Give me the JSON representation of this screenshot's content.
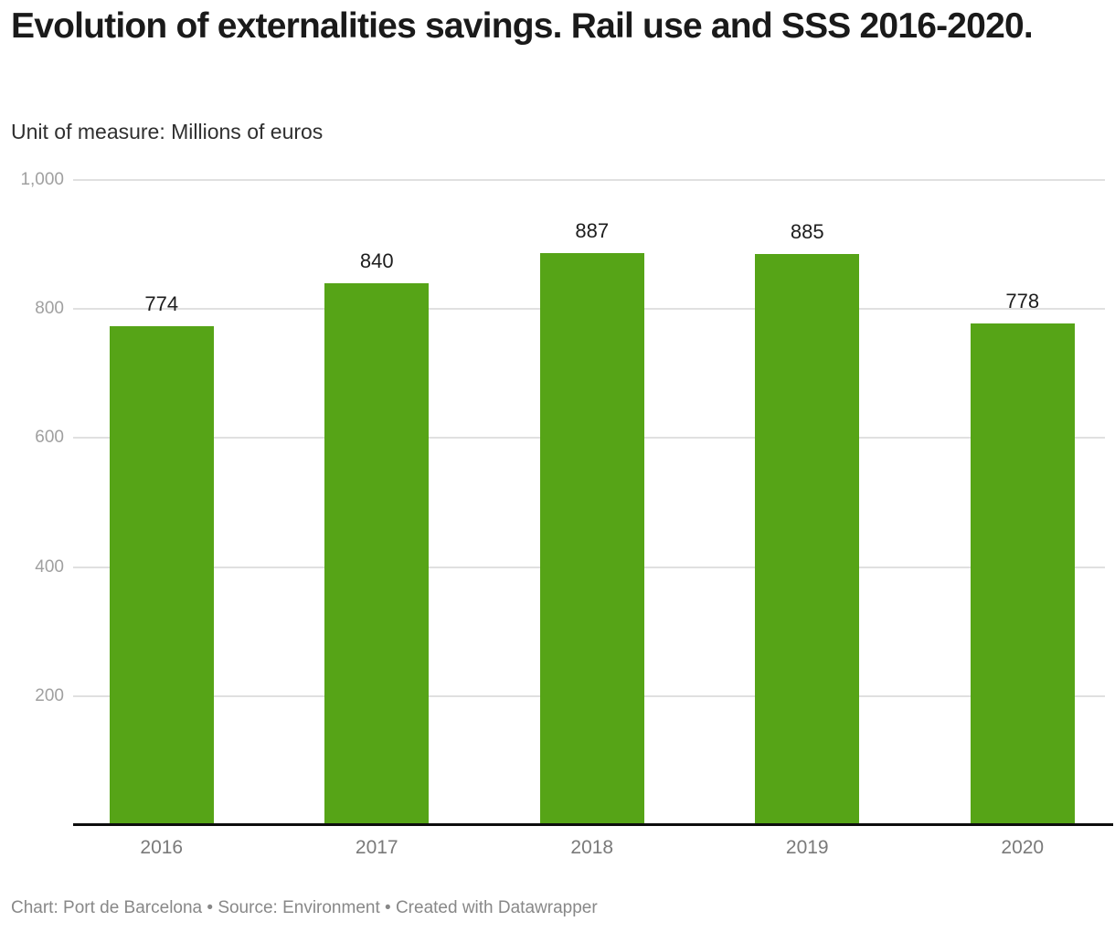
{
  "header": {
    "title": "Evolution of externalities savings. Rail use and SSS 2016-2020.",
    "subtitle": "Unit of measure: Millions of euros"
  },
  "footer": {
    "credit": "Chart: Port de Barcelona • Source: Environment • Created with Datawrapper"
  },
  "colors": {
    "bar": "#56a417",
    "grid": "#e0e0e0",
    "baseline": "#0d0d0d",
    "title_text": "#1a1a1a",
    "value_label_text": "#1d1d1d",
    "x_axis_label_text": "#7a7a7a",
    "y_tick_label_text": "#a0a0a0",
    "footer_text": "#888888"
  },
  "chart_data": {
    "type": "bar",
    "title": "Evolution of externalities savings. Rail use and SSS 2016-2020.",
    "subtitle": "Unit of measure: Millions of euros",
    "categories": [
      "2016",
      "2017",
      "2018",
      "2019",
      "2020"
    ],
    "values": [
      774,
      840,
      887,
      885,
      778
    ],
    "value_labels": [
      "774",
      "840",
      "887",
      "885",
      "778"
    ],
    "xlabel": "",
    "ylabel": "",
    "ylim": [
      0,
      1000
    ],
    "yticks": [
      200,
      400,
      600,
      800,
      1000
    ],
    "ytick_labels": [
      "200",
      "400",
      "600",
      "800",
      "1,000"
    ],
    "grid": "horizontal-only",
    "legend": "none",
    "bar_color": "#56a417",
    "footer": "Chart: Port de Barcelona • Source: Environment • Created with Datawrapper"
  }
}
